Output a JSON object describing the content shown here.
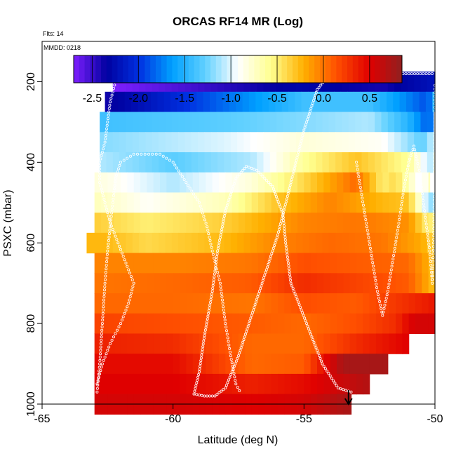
{
  "chart_data": {
    "type": "heatmap",
    "title": "ORCAS RF14 MR (Log)",
    "flights_label": "Flts: 14",
    "mmdd_label": "MMDD: 0218",
    "xlabel": "Latitude (deg N)",
    "ylabel": "PSXC (mbar)",
    "xlim": [
      -65,
      -50
    ],
    "ylim": [
      1000,
      100
    ],
    "xticks": [
      -65,
      -60,
      -55,
      -50
    ],
    "yticks": [
      200,
      400,
      600,
      800,
      1000
    ],
    "colorbar": {
      "range": [
        -2.7,
        0.85
      ],
      "ticks": [
        -2.5,
        -2.0,
        -1.5,
        -1.0,
        -0.5,
        0.0,
        0.5
      ],
      "tick_labels": [
        "-2.5",
        "-2.0",
        "-1.5",
        "-1.0",
        "-0.5",
        "0.0",
        "0.5"
      ],
      "palette": [
        "#7f1fff",
        "#0000a0",
        "#0030e0",
        "#00a0ff",
        "#60d0ff",
        "#ffffff",
        "#ffff90",
        "#ffb000",
        "#ff5000",
        "#e00000",
        "#902020"
      ]
    },
    "layers": [
      {
        "p": 200,
        "x0": -62.3,
        "x1": -50,
        "v0": -2.7,
        "v1": -2.2,
        "kinks": [
          [
            -55.2,
            -2.3
          ],
          [
            -52,
            -2.4
          ]
        ]
      },
      {
        "p": 250,
        "x0": -62.6,
        "x1": -50,
        "v0": -2.4,
        "v1": -1.5,
        "kinks": [
          [
            -58,
            -1.8
          ],
          [
            -55,
            -1.4
          ],
          [
            -52.5,
            -1.4
          ],
          [
            -50.3,
            -1.9
          ]
        ]
      },
      {
        "p": 300,
        "x0": -62.8,
        "x1": -50,
        "v0": -1.4,
        "v1": -0.9,
        "kinks": [
          [
            -58,
            -1.3
          ],
          [
            -55,
            -1.2
          ],
          [
            -52.5,
            -1.1
          ],
          [
            -51,
            -1.5
          ],
          [
            -50.2,
            -1.9
          ]
        ]
      },
      {
        "p": 350,
        "x0": -62.8,
        "x1": -50,
        "v0": -1.2,
        "v1": -1.0,
        "kinks": [
          [
            -58,
            -1.0
          ],
          [
            -55,
            -0.8
          ],
          [
            -52,
            -0.9
          ],
          [
            -50.5,
            -1.3
          ]
        ]
      },
      {
        "p": 400,
        "x0": -62.8,
        "x1": -50,
        "v0": -1.1,
        "v1": -0.8,
        "kinks": [
          [
            -60,
            -1.3
          ],
          [
            -57,
            -1.1
          ],
          [
            -55,
            -0.6
          ],
          [
            -53,
            -0.3
          ],
          [
            -51,
            -0.6
          ],
          [
            -50.2,
            -1.1
          ]
        ]
      },
      {
        "p": 450,
        "x0": -63,
        "x1": -50.2,
        "v0": -0.8,
        "v1": -0.7,
        "kinks": [
          [
            -60,
            -1.1
          ],
          [
            -57,
            -0.8
          ],
          [
            -55.5,
            -0.5
          ],
          [
            -53,
            0.05
          ],
          [
            -52,
            -0.5
          ],
          [
            -51.5,
            -0.4
          ],
          [
            -50.5,
            -1.0
          ]
        ]
      },
      {
        "p": 500,
        "x0": -63,
        "x1": -50,
        "v0": -0.7,
        "v1": -1.2,
        "kinks": [
          [
            -61,
            -0.9
          ],
          [
            -58,
            -0.7
          ],
          [
            -56,
            -0.3
          ],
          [
            -54,
            -0.05
          ],
          [
            -52,
            -0.25
          ],
          [
            -51,
            -0.3
          ],
          [
            -50.3,
            -1.1
          ]
        ]
      },
      {
        "p": 550,
        "x0": -63,
        "x1": -50,
        "v0": -0.35,
        "v1": -0.5,
        "kinks": [
          [
            -61,
            -0.5
          ],
          [
            -58,
            -0.35
          ],
          [
            -55,
            -0.05
          ],
          [
            -53,
            0.0
          ],
          [
            -51,
            -0.1
          ],
          [
            -50.3,
            -0.5
          ]
        ]
      },
      {
        "p": 600,
        "x0": -63.3,
        "x1": -50,
        "v0": -0.25,
        "v1": -0.4,
        "kinks": [
          [
            -62.7,
            -0.25
          ],
          [
            -61,
            -0.4
          ],
          [
            -58,
            -0.25
          ],
          [
            -56,
            -0.05
          ],
          [
            -54,
            0.05
          ],
          [
            -52,
            0.0
          ],
          [
            -50.5,
            -0.2
          ]
        ]
      },
      {
        "p": 650,
        "x0": -63,
        "x1": -50,
        "v0": -0.05,
        "v1": -0.3,
        "kinks": [
          [
            -60,
            -0.05
          ],
          [
            -57,
            0.0
          ],
          [
            -55,
            0.15
          ],
          [
            -53,
            0.1
          ],
          [
            -51,
            0.05
          ]
        ]
      },
      {
        "p": 700,
        "x0": -63,
        "x1": -50,
        "v0": 0.0,
        "v1": -0.3,
        "kinks": [
          [
            -60,
            0.05
          ],
          [
            -57,
            0.1
          ],
          [
            -55,
            0.3
          ],
          [
            -53,
            0.2
          ],
          [
            -51,
            0.1
          ]
        ]
      },
      {
        "p": 750,
        "x0": -63,
        "x1": -50,
        "v0": 0.05,
        "v1": 0.4,
        "kinks": [
          [
            -60,
            0.05
          ],
          [
            -57,
            0.0
          ],
          [
            -55,
            0.15
          ],
          [
            -53,
            0.1
          ],
          [
            -51,
            0.3
          ]
        ]
      },
      {
        "p": 800,
        "x0": -63,
        "x1": -50,
        "v0": 0.2,
        "v1": 0.55,
        "kinks": [
          [
            -60,
            0.15
          ],
          [
            -57,
            0.1
          ],
          [
            -55,
            0.05
          ],
          [
            -53,
            0.15
          ],
          [
            -51.5,
            0.3
          ],
          [
            -50.8,
            0.55
          ]
        ]
      },
      {
        "p": 850,
        "x0": -63,
        "x1": -51,
        "v0": 0.35,
        "v1": 0.5,
        "kinks": [
          [
            -60,
            0.3
          ],
          [
            -57,
            0.05
          ],
          [
            -55,
            0.05
          ],
          [
            -53,
            0.3
          ],
          [
            -52,
            0.4
          ]
        ]
      },
      {
        "p": 900,
        "x0": -63,
        "x1": -51.8,
        "v0": 0.45,
        "v1": 0.75,
        "kinks": [
          [
            -60,
            0.45
          ],
          [
            -57,
            0.05
          ],
          [
            -55,
            0.1
          ],
          [
            -53.5,
            0.75
          ]
        ]
      },
      {
        "p": 950,
        "x0": -63,
        "x1": -52.5,
        "v0": 0.5,
        "v1": 0.7,
        "kinks": [
          [
            -60,
            0.5
          ],
          [
            -57,
            0.35
          ],
          [
            -55,
            0.45
          ],
          [
            -54,
            0.55
          ]
        ]
      },
      {
        "p": 1000,
        "x0": -63,
        "x1": -53.2,
        "v0": 0.55,
        "v1": 0.75,
        "kinks": [
          [
            -60,
            0.55
          ],
          [
            -57,
            0.5
          ],
          [
            -55,
            0.55
          ]
        ]
      }
    ],
    "flight_track": [
      [
        -53.2,
        970
      ],
      [
        -53.7,
        960
      ],
      [
        -54.3,
        900
      ],
      [
        -54.9,
        800
      ],
      [
        -55.5,
        700
      ],
      [
        -55.7,
        600
      ],
      [
        -55.8,
        530
      ],
      [
        -56.2,
        460
      ],
      [
        -56.8,
        420
      ],
      [
        -57.2,
        410
      ],
      [
        -57.6,
        440
      ],
      [
        -58.0,
        520
      ],
      [
        -58.3,
        620
      ],
      [
        -58.5,
        720
      ],
      [
        -58.8,
        830
      ],
      [
        -59.0,
        920
      ],
      [
        -59.2,
        975
      ],
      [
        -58.8,
        980
      ],
      [
        -58.4,
        980
      ],
      [
        -58.0,
        960
      ],
      [
        -57.5,
        880
      ],
      [
        -57.0,
        780
      ],
      [
        -56.5,
        680
      ],
      [
        -56.0,
        580
      ],
      [
        -55.5,
        450
      ],
      [
        -55.0,
        320
      ],
      [
        -54.5,
        220
      ],
      [
        -54.0,
        180
      ],
      [
        -53.0,
        180
      ],
      [
        -52.0,
        180
      ],
      [
        -51.0,
        180
      ],
      [
        -50.0,
        180
      ]
    ],
    "flight_track2": [
      [
        -53.0,
        400
      ],
      [
        -52.8,
        480
      ],
      [
        -52.6,
        560
      ],
      [
        -52.4,
        640
      ],
      [
        -52.2,
        720
      ],
      [
        -52.0,
        780
      ],
      [
        -51.8,
        720
      ],
      [
        -51.6,
        640
      ],
      [
        -51.4,
        560
      ],
      [
        -51.2,
        470
      ],
      [
        -51.0,
        400
      ],
      [
        -50.8,
        360
      ],
      [
        -50.6,
        420
      ],
      [
        -50.4,
        520
      ],
      [
        -50.2,
        620
      ],
      [
        -50.1,
        700
      ],
      [
        -50.05,
        600
      ],
      [
        -50.02,
        450
      ],
      [
        -50.0,
        300
      ],
      [
        -50.0,
        200
      ]
    ],
    "flight_track3": [
      [
        -62.9,
        970
      ],
      [
        -62.8,
        900
      ],
      [
        -62.7,
        800
      ],
      [
        -62.6,
        700
      ],
      [
        -62.5,
        620
      ],
      [
        -62.4,
        560
      ],
      [
        -62.3,
        500
      ],
      [
        -62.2,
        440
      ],
      [
        -62.0,
        400
      ],
      [
        -61.5,
        380
      ],
      [
        -60.5,
        380
      ],
      [
        -60.0,
        400
      ],
      [
        -59.5,
        450
      ],
      [
        -59.0,
        500
      ],
      [
        -58.7,
        560
      ],
      [
        -58.5,
        620
      ],
      [
        -58.2,
        700
      ],
      [
        -58.0,
        800
      ],
      [
        -57.8,
        880
      ],
      [
        -57.6,
        950
      ],
      [
        -57.4,
        975
      ]
    ],
    "flight_track4": [
      [
        -62.9,
        950
      ],
      [
        -62.7,
        900
      ],
      [
        -62.4,
        850
      ],
      [
        -62.0,
        800
      ],
      [
        -61.7,
        750
      ],
      [
        -61.5,
        700
      ],
      [
        -61.8,
        650
      ],
      [
        -62.1,
        600
      ],
      [
        -62.4,
        550
      ],
      [
        -62.6,
        500
      ],
      [
        -62.8,
        450
      ],
      [
        -62.8,
        400
      ],
      [
        -62.6,
        350
      ],
      [
        -62.5,
        300
      ],
      [
        -62.4,
        250
      ],
      [
        -62.2,
        200
      ],
      [
        -62.1,
        180
      ]
    ],
    "arrow_x": -53.3
  }
}
